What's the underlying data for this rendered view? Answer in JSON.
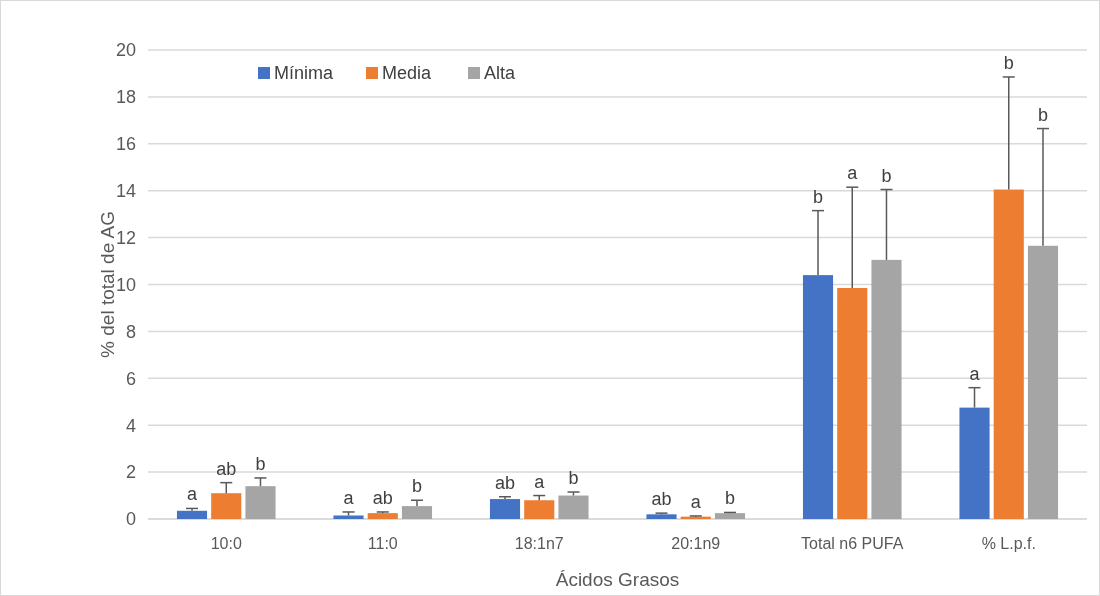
{
  "chart_data": {
    "type": "bar",
    "xlabel": "Ácidos Grasos",
    "ylabel": "% del total de AG",
    "categories": [
      "10:0",
      "11:0",
      "18:1n7",
      "20:1n9",
      "Total n6 PUFA",
      "% L.p.f."
    ],
    "series": [
      {
        "name": "Mínima",
        "color": "#4472c4",
        "values": [
          0.35,
          0.15,
          0.85,
          0.2,
          10.4,
          4.75
        ],
        "errors": [
          [
            0.35,
            0.45
          ],
          [
            0.15,
            0.3
          ],
          [
            0.85,
            0.95
          ],
          [
            0.2,
            0.25
          ],
          [
            10.4,
            13.15
          ],
          [
            4.75,
            5.6
          ]
        ]
      },
      {
        "name": "Media",
        "color": "#ed7d31",
        "values": [
          1.1,
          0.25,
          0.8,
          0.1,
          9.85,
          14.05
        ],
        "errors": [
          [
            1.1,
            1.55
          ],
          [
            0.25,
            0.3
          ],
          [
            0.8,
            1.0
          ],
          [
            0.1,
            0.13
          ],
          [
            9.85,
            14.15
          ],
          [
            14.05,
            18.85
          ]
        ]
      },
      {
        "name": "Alta",
        "color": "#a5a5a5",
        "values": [
          1.4,
          0.55,
          1.0,
          0.25,
          11.05,
          11.65
        ],
        "errors": [
          [
            1.4,
            1.75
          ],
          [
            0.55,
            0.8
          ],
          [
            1.0,
            1.15
          ],
          [
            0.25,
            0.28
          ],
          [
            11.05,
            14.05
          ],
          [
            11.65,
            16.65
          ]
        ]
      }
    ],
    "annotations": [
      "a",
      "ab",
      "b",
      "a",
      "ab",
      "b",
      "ab",
      "a",
      "b",
      "ab",
      "a",
      "b",
      "b",
      "a",
      "b",
      "a",
      "b",
      "b"
    ],
    "ylim": [
      0,
      20
    ],
    "yticks": [
      0,
      2,
      4,
      6,
      8,
      10,
      12,
      14,
      16,
      18,
      20
    ],
    "grid": "y",
    "legend": "top left"
  }
}
